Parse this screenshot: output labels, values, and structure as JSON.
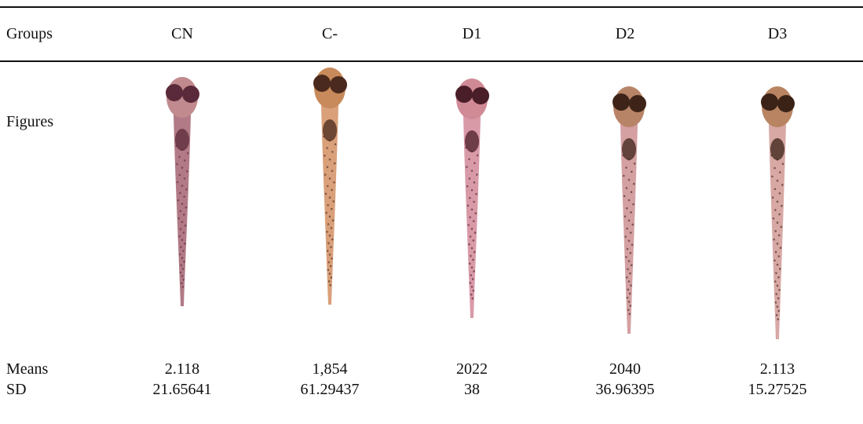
{
  "table": {
    "header": [
      "Groups",
      "CN",
      "C-",
      "D1",
      "D2",
      "D3"
    ],
    "figures_label": "Figures",
    "means": [
      "Means",
      "2.118",
      "1,854",
      "2022",
      "2040",
      "2.113"
    ],
    "sd": [
      "SD",
      "21.65641",
      "61.29437",
      "38",
      "36.96395",
      "15.27525"
    ]
  }
}
